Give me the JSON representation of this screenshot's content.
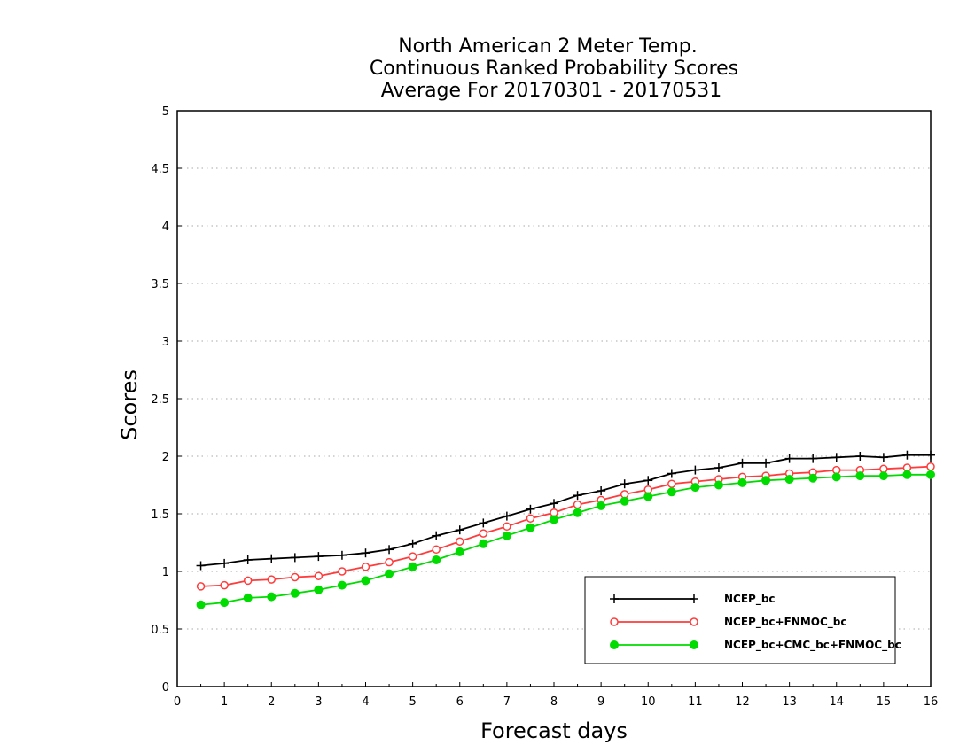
{
  "chart_data": {
    "type": "line",
    "title_lines": [
      "North American 2 Meter Temp.",
      "Continuous Ranked Probability Scores",
      "Average For 20170301 - 20170531"
    ],
    "xlabel": "Forecast days",
    "ylabel": "Scores",
    "xlim": [
      0,
      16
    ],
    "ylim": [
      0,
      5
    ],
    "xticks": [
      "0",
      "1",
      "2",
      "3",
      "4",
      "5",
      "6",
      "7",
      "8",
      "9",
      "10",
      "11",
      "12",
      "13",
      "14",
      "15",
      "16"
    ],
    "yticks": [
      "0",
      "0.5",
      "1",
      "1.5",
      "2",
      "2.5",
      "3",
      "3.5",
      "4",
      "4.5",
      "5"
    ],
    "grid": true,
    "legend_position": "bottom-right",
    "x": [
      0.5,
      1,
      1.5,
      2,
      2.5,
      3,
      3.5,
      4,
      4.5,
      5,
      5.5,
      6,
      6.5,
      7,
      7.5,
      8,
      8.5,
      9,
      9.5,
      10,
      10.5,
      11,
      11.5,
      12,
      12.5,
      13,
      13.5,
      14,
      14.5,
      15,
      15.5,
      16
    ],
    "series": [
      {
        "name": "NCEP_bc",
        "color": "#000000",
        "marker": "plus",
        "values": [
          1.05,
          1.07,
          1.1,
          1.11,
          1.12,
          1.13,
          1.14,
          1.16,
          1.19,
          1.24,
          1.31,
          1.36,
          1.42,
          1.48,
          1.54,
          1.59,
          1.66,
          1.7,
          1.76,
          1.79,
          1.85,
          1.88,
          1.9,
          1.94,
          1.94,
          1.98,
          1.98,
          1.99,
          2.0,
          1.99,
          2.01,
          2.01
        ]
      },
      {
        "name": "NCEP_bc+FNMOC_bc",
        "color": "#ff3c3c",
        "marker": "open-circle",
        "values": [
          0.87,
          0.88,
          0.92,
          0.93,
          0.95,
          0.96,
          1.0,
          1.04,
          1.08,
          1.13,
          1.19,
          1.26,
          1.33,
          1.39,
          1.46,
          1.51,
          1.58,
          1.62,
          1.67,
          1.71,
          1.76,
          1.78,
          1.8,
          1.82,
          1.83,
          1.85,
          1.86,
          1.88,
          1.88,
          1.89,
          1.9,
          1.91
        ]
      },
      {
        "name": "NCEP_bc+CMC_bc+FNMOC_bc",
        "color": "#00dc00",
        "marker": "filled-circle",
        "values": [
          0.71,
          0.73,
          0.77,
          0.78,
          0.81,
          0.84,
          0.88,
          0.92,
          0.98,
          1.04,
          1.1,
          1.17,
          1.24,
          1.31,
          1.38,
          1.45,
          1.51,
          1.57,
          1.61,
          1.65,
          1.69,
          1.73,
          1.75,
          1.77,
          1.79,
          1.8,
          1.81,
          1.82,
          1.83,
          1.83,
          1.84,
          1.84
        ]
      }
    ]
  }
}
